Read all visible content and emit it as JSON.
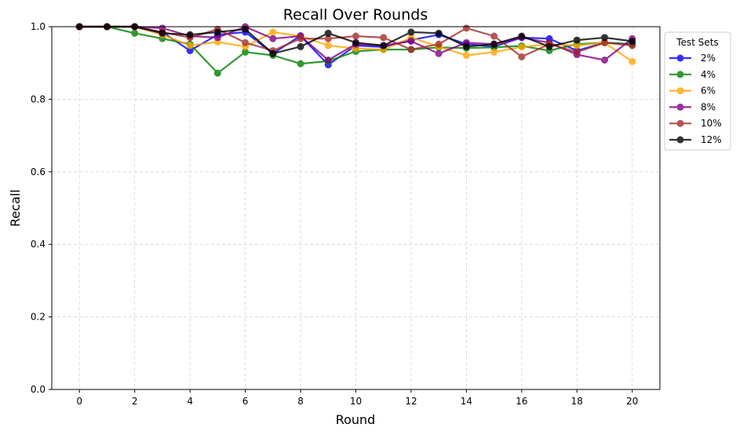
{
  "chart_data": {
    "type": "line",
    "title": "Recall Over Rounds",
    "xlabel": "Round",
    "ylabel": "Recall",
    "xlim": [
      -1,
      21
    ],
    "ylim": [
      0,
      1.0
    ],
    "xticks": [
      0,
      2,
      4,
      6,
      8,
      10,
      12,
      14,
      16,
      18,
      20
    ],
    "yticks": [
      0.0,
      0.2,
      0.4,
      0.6,
      0.8,
      1.0
    ],
    "xtick_labels": [
      "0",
      "2",
      "4",
      "6",
      "8",
      "10",
      "12",
      "14",
      "16",
      "18",
      "20"
    ],
    "ytick_labels": [
      "0.0",
      "0.2",
      "0.4",
      "0.6",
      "0.8",
      "1.0"
    ],
    "grid": true,
    "legend_title": "Test Sets",
    "legend_placement": "outside-top-right",
    "x": [
      0,
      1,
      2,
      3,
      4,
      5,
      6,
      7,
      8,
      9,
      10,
      11,
      12,
      13,
      14,
      15,
      16,
      17,
      18,
      19,
      20
    ],
    "series": [
      {
        "name": "2%",
        "color": "#0000ff",
        "values": [
          1.0,
          1.0,
          1.0,
          0.985,
          0.934,
          0.978,
          0.985,
          0.926,
          0.975,
          0.895,
          0.948,
          0.944,
          0.963,
          0.978,
          0.952,
          0.945,
          0.97,
          0.967,
          0.934,
          0.956,
          0.952
        ]
      },
      {
        "name": "4%",
        "color": "#008000",
        "values": [
          1.0,
          1.0,
          0.982,
          0.967,
          0.952,
          0.872,
          0.93,
          0.921,
          0.898,
          0.905,
          0.932,
          0.937,
          0.937,
          0.943,
          0.941,
          0.943,
          0.947,
          0.934,
          0.952,
          0.956,
          0.952
        ]
      },
      {
        "name": "6%",
        "color": "#ffa500",
        "values": [
          1.0,
          1.0,
          1.0,
          0.978,
          0.948,
          0.958,
          0.945,
          0.985,
          0.974,
          0.948,
          0.94,
          0.937,
          0.97,
          0.945,
          0.921,
          0.93,
          0.944,
          0.952,
          0.948,
          0.956,
          0.904
        ]
      },
      {
        "name": "8%",
        "color": "#800080",
        "values": [
          1.0,
          1.0,
          1.0,
          0.996,
          0.974,
          0.97,
          1.0,
          0.967,
          0.974,
          0.908,
          0.952,
          0.948,
          0.96,
          0.926,
          0.956,
          0.952,
          0.97,
          0.956,
          0.923,
          0.908,
          0.967
        ]
      },
      {
        "name": "10%",
        "color": "#a52a2a",
        "values": [
          1.0,
          1.0,
          1.0,
          0.985,
          0.97,
          0.993,
          0.956,
          0.934,
          0.967,
          0.967,
          0.974,
          0.97,
          0.937,
          0.952,
          0.996,
          0.974,
          0.917,
          0.952,
          0.93,
          0.956,
          0.948
        ]
      },
      {
        "name": "12%",
        "color": "#000000",
        "values": [
          1.0,
          1.0,
          1.0,
          0.982,
          0.978,
          0.985,
          0.993,
          0.926,
          0.945,
          0.982,
          0.956,
          0.948,
          0.985,
          0.982,
          0.945,
          0.952,
          0.974,
          0.945,
          0.963,
          0.97,
          0.96
        ]
      }
    ]
  }
}
